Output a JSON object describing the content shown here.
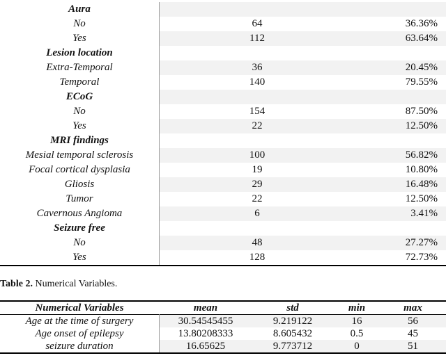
{
  "table1": {
    "rows": [
      {
        "label": "Aura",
        "header": true,
        "n": "",
        "pct": ""
      },
      {
        "label": "No",
        "header": false,
        "n": "64",
        "pct": "36.36%"
      },
      {
        "label": "Yes",
        "header": false,
        "n": "112",
        "pct": "63.64%"
      },
      {
        "label": "Lesion location",
        "header": true,
        "n": "",
        "pct": ""
      },
      {
        "label": "Extra-Temporal",
        "header": false,
        "n": "36",
        "pct": "20.45%"
      },
      {
        "label": "Temporal",
        "header": false,
        "n": "140",
        "pct": "79.55%"
      },
      {
        "label": "ECoG",
        "header": true,
        "n": "",
        "pct": ""
      },
      {
        "label": "No",
        "header": false,
        "n": "154",
        "pct": "87.50%"
      },
      {
        "label": "Yes",
        "header": false,
        "n": "22",
        "pct": "12.50%"
      },
      {
        "label": "MRI findings",
        "header": true,
        "n": "",
        "pct": ""
      },
      {
        "label": "Mesial temporal sclerosis",
        "header": false,
        "n": "100",
        "pct": "56.82%"
      },
      {
        "label": "Focal cortical dysplasia",
        "header": false,
        "n": "19",
        "pct": "10.80%"
      },
      {
        "label": "Gliosis",
        "header": false,
        "n": "29",
        "pct": "16.48%"
      },
      {
        "label": "Tumor",
        "header": false,
        "n": "22",
        "pct": "12.50%"
      },
      {
        "label": "Cavernous Angioma",
        "header": false,
        "n": "6",
        "pct": "3.41%"
      },
      {
        "label": "Seizure free",
        "header": true,
        "n": "",
        "pct": ""
      },
      {
        "label": "No",
        "header": false,
        "n": "48",
        "pct": "27.27%"
      },
      {
        "label": "Yes",
        "header": false,
        "n": "128",
        "pct": "72.73%"
      }
    ]
  },
  "table2": {
    "caption_label": "Table 2.",
    "caption_text": " Numerical Variables.",
    "headers": [
      "Numerical Variables",
      "mean",
      "std",
      "min",
      "max"
    ],
    "rows": [
      [
        "Age at the time of surgery",
        "30.54545455",
        "9.219122",
        "16",
        "56"
      ],
      [
        "Age onset of epilepsy",
        "13.80208333",
        "8.605432",
        "0.5",
        "45"
      ],
      [
        "seizure duration",
        "16.65625",
        "9.773712",
        "0",
        "51"
      ]
    ]
  }
}
